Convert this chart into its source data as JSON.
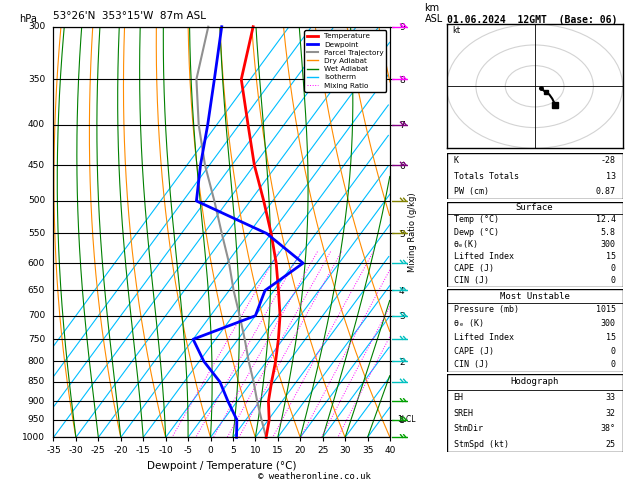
{
  "title_left": "53°26'N  353°15'W  87m ASL",
  "date_str": "01.06.2024  12GMT  (Base: 06)",
  "xlabel": "Dewpoint / Temperature (°C)",
  "temp_profile_p": [
    1000,
    950,
    900,
    850,
    800,
    750,
    700,
    650,
    600,
    550,
    500,
    450,
    400,
    350,
    300
  ],
  "temp_profile_t": [
    12.4,
    10.2,
    7.0,
    4.5,
    2.0,
    -1.0,
    -4.5,
    -9.0,
    -14.0,
    -20.0,
    -27.0,
    -35.0,
    -43.0,
    -52.0,
    -58.0
  ],
  "dewp_profile_p": [
    1000,
    950,
    900,
    850,
    800,
    750,
    700,
    650,
    600,
    550,
    500,
    450,
    400,
    350,
    300
  ],
  "dewp_profile_t": [
    5.8,
    3.0,
    -2.0,
    -7.0,
    -14.0,
    -20.0,
    -10.0,
    -12.0,
    -8.0,
    -21.0,
    -42.0,
    -47.0,
    -52.0,
    -58.0,
    -65.0
  ],
  "parcel_p": [
    1000,
    950,
    900,
    850,
    800,
    750,
    700,
    650,
    600,
    550,
    500,
    450,
    400,
    350,
    300
  ],
  "parcel_t": [
    12.4,
    8.5,
    4.5,
    0.5,
    -4.0,
    -8.5,
    -13.5,
    -19.0,
    -24.5,
    -31.0,
    -38.0,
    -46.0,
    -54.0,
    -62.0,
    -68.0
  ],
  "temp_color": "#ff0000",
  "dewp_color": "#0000ff",
  "parcel_color": "#909090",
  "dry_adiabat_color": "#ff8c00",
  "wet_adiabat_color": "#008000",
  "isotherm_color": "#00bfff",
  "mixing_ratio_color": "#ff00ff",
  "t_min": -35,
  "t_max": 40,
  "p_min": 300,
  "p_max": 1000,
  "mixing_ratios": [
    2,
    3,
    4,
    5,
    6,
    10,
    15,
    20,
    25
  ],
  "pressure_labels": [
    300,
    350,
    400,
    450,
    500,
    550,
    600,
    650,
    700,
    750,
    800,
    850,
    900,
    950,
    1000
  ],
  "km_ticks": [
    [
      300,
      "9"
    ],
    [
      350,
      "8"
    ],
    [
      400,
      "7"
    ],
    [
      450,
      "6"
    ],
    [
      550,
      "5"
    ],
    [
      650,
      "4"
    ],
    [
      700,
      "3"
    ],
    [
      800,
      "2"
    ],
    [
      950,
      "1"
    ]
  ],
  "k_index": -28,
  "totals_totals": 13,
  "pw_cm": 0.87,
  "surf_temp": 12.4,
  "surf_dewp": 5.8,
  "surf_theta_e": 300,
  "surf_lifted_index": 15,
  "surf_cape": 0,
  "surf_cin": 0,
  "mu_pressure": 1015,
  "mu_theta_e": 300,
  "mu_lifted_index": 15,
  "mu_cape": 0,
  "mu_cin": 0,
  "hodo_eh": 33,
  "hodo_sreh": 32,
  "hodo_stmdir": 38,
  "hodo_stmspd": 25,
  "lcl_pressure": 950,
  "footer": "© weatheronline.co.uk",
  "wind_barb_p": [
    300,
    350,
    400,
    450,
    500,
    550,
    600,
    650,
    700,
    750,
    800,
    850,
    900,
    950,
    1000
  ],
  "wind_barb_col": [
    "#ff00ff",
    "#ff00ff",
    "#800080",
    "#800080",
    "#808000",
    "#808000",
    "#00c0c0",
    "#00c0c0",
    "#00c0c0",
    "#00c0c0",
    "#00c0c0",
    "#00c0c0",
    "#00a000",
    "#00a000",
    "#00a000"
  ]
}
